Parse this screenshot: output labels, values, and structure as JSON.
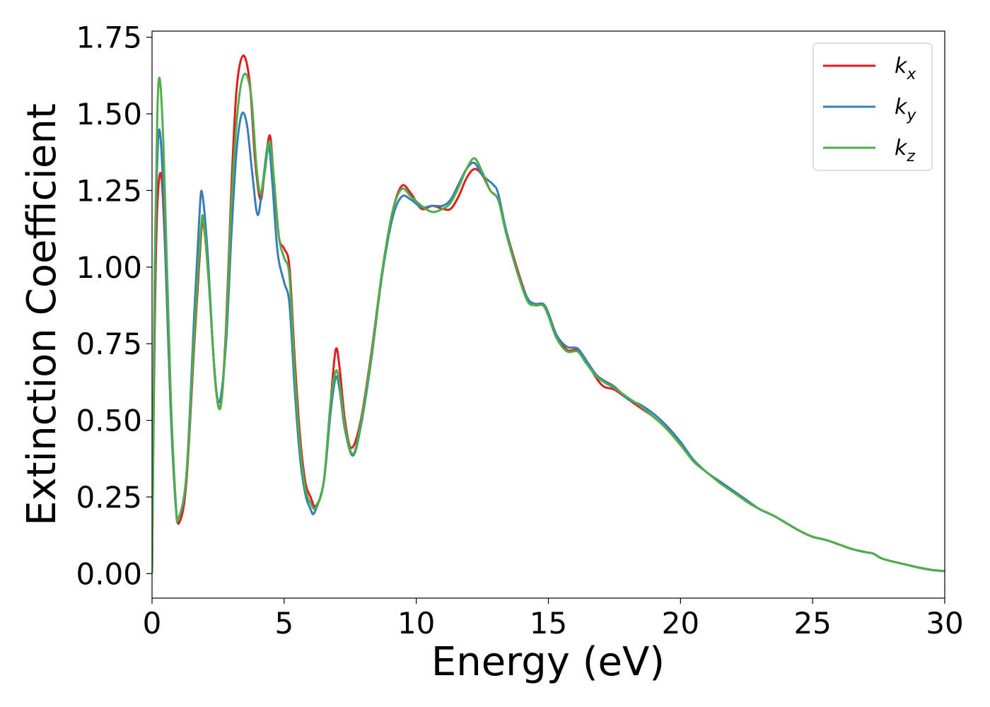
{
  "chart_data": {
    "type": "line",
    "xlabel": "Energy (eV)",
    "ylabel": "Extinction Coefficient",
    "xlim": [
      0,
      30
    ],
    "ylim": [
      -0.08,
      1.77
    ],
    "xticks": [
      0,
      5,
      10,
      15,
      20,
      25,
      30
    ],
    "xtick_labels": [
      "0",
      "5",
      "10",
      "15",
      "20",
      "25",
      "30"
    ],
    "yticks": [
      0.0,
      0.25,
      0.5,
      0.75,
      1.0,
      1.25,
      1.5,
      1.75
    ],
    "ytick_labels": [
      "0.00",
      "0.25",
      "0.50",
      "0.75",
      "1.00",
      "1.25",
      "1.50",
      "1.75"
    ],
    "grid": false,
    "legend": {
      "location": "top-right"
    },
    "series": [
      {
        "name": "k",
        "subscript": "x",
        "color": "#e41a1c",
        "points": [
          [
            0,
            0.0
          ],
          [
            0.1,
            0.8
          ],
          [
            0.2,
            1.2
          ],
          [
            0.35,
            1.3
          ],
          [
            0.5,
            1.05
          ],
          [
            0.7,
            0.55
          ],
          [
            0.9,
            0.22
          ],
          [
            1.05,
            0.17
          ],
          [
            1.3,
            0.3
          ],
          [
            1.6,
            0.75
          ],
          [
            1.85,
            1.1
          ],
          [
            1.95,
            1.14
          ],
          [
            2.15,
            0.95
          ],
          [
            2.4,
            0.62
          ],
          [
            2.6,
            0.55
          ],
          [
            2.8,
            0.8
          ],
          [
            3.0,
            1.25
          ],
          [
            3.2,
            1.58
          ],
          [
            3.45,
            1.69
          ],
          [
            3.7,
            1.6
          ],
          [
            3.9,
            1.35
          ],
          [
            4.1,
            1.22
          ],
          [
            4.25,
            1.3
          ],
          [
            4.45,
            1.43
          ],
          [
            4.6,
            1.3
          ],
          [
            4.8,
            1.1
          ],
          [
            5.0,
            1.06
          ],
          [
            5.2,
            1.0
          ],
          [
            5.4,
            0.7
          ],
          [
            5.6,
            0.45
          ],
          [
            5.8,
            0.3
          ],
          [
            6.0,
            0.25
          ],
          [
            6.2,
            0.22
          ],
          [
            6.5,
            0.3
          ],
          [
            6.75,
            0.55
          ],
          [
            6.95,
            0.73
          ],
          [
            7.1,
            0.67
          ],
          [
            7.3,
            0.5
          ],
          [
            7.55,
            0.41
          ],
          [
            7.9,
            0.5
          ],
          [
            8.3,
            0.72
          ],
          [
            8.7,
            0.98
          ],
          [
            9.1,
            1.18
          ],
          [
            9.45,
            1.265
          ],
          [
            9.8,
            1.24
          ],
          [
            10.2,
            1.19
          ],
          [
            10.6,
            1.2
          ],
          [
            11.0,
            1.19
          ],
          [
            11.3,
            1.19
          ],
          [
            11.6,
            1.23
          ],
          [
            11.9,
            1.29
          ],
          [
            12.2,
            1.32
          ],
          [
            12.5,
            1.3
          ],
          [
            12.8,
            1.25
          ],
          [
            13.1,
            1.22
          ],
          [
            13.4,
            1.12
          ],
          [
            13.8,
            1.0
          ],
          [
            14.2,
            0.9
          ],
          [
            14.5,
            0.88
          ],
          [
            14.8,
            0.88
          ],
          [
            15.0,
            0.85
          ],
          [
            15.3,
            0.78
          ],
          [
            15.7,
            0.73
          ],
          [
            16.1,
            0.73
          ],
          [
            16.4,
            0.7
          ],
          [
            16.8,
            0.64
          ],
          [
            17.1,
            0.61
          ],
          [
            17.5,
            0.6
          ],
          [
            18.0,
            0.57
          ],
          [
            18.5,
            0.54
          ],
          [
            19.0,
            0.51
          ],
          [
            19.5,
            0.47
          ],
          [
            20.0,
            0.42
          ],
          [
            20.5,
            0.37
          ],
          [
            21.0,
            0.33
          ],
          [
            21.5,
            0.3
          ],
          [
            22.0,
            0.27
          ],
          [
            22.5,
            0.235
          ],
          [
            23.0,
            0.21
          ],
          [
            23.5,
            0.19
          ],
          [
            24.0,
            0.165
          ],
          [
            24.5,
            0.14
          ],
          [
            25.0,
            0.12
          ],
          [
            25.5,
            0.11
          ],
          [
            26.0,
            0.095
          ],
          [
            26.5,
            0.08
          ],
          [
            27.0,
            0.07
          ],
          [
            27.3,
            0.065
          ],
          [
            27.6,
            0.05
          ],
          [
            28.0,
            0.04
          ],
          [
            28.5,
            0.03
          ],
          [
            29.0,
            0.02
          ],
          [
            29.5,
            0.012
          ],
          [
            30.0,
            0.008
          ]
        ]
      },
      {
        "name": "k",
        "subscript": "y",
        "color": "#377eb8",
        "points": [
          [
            0,
            0.0
          ],
          [
            0.1,
            0.9
          ],
          [
            0.2,
            1.35
          ],
          [
            0.3,
            1.44
          ],
          [
            0.45,
            1.2
          ],
          [
            0.7,
            0.55
          ],
          [
            0.9,
            0.22
          ],
          [
            1.0,
            0.18
          ],
          [
            1.3,
            0.32
          ],
          [
            1.6,
            0.85
          ],
          [
            1.8,
            1.18
          ],
          [
            1.9,
            1.24
          ],
          [
            2.1,
            1.05
          ],
          [
            2.35,
            0.68
          ],
          [
            2.55,
            0.56
          ],
          [
            2.8,
            0.75
          ],
          [
            3.0,
            1.1
          ],
          [
            3.2,
            1.38
          ],
          [
            3.4,
            1.5
          ],
          [
            3.6,
            1.46
          ],
          [
            3.8,
            1.3
          ],
          [
            4.0,
            1.17
          ],
          [
            4.2,
            1.28
          ],
          [
            4.4,
            1.4
          ],
          [
            4.55,
            1.28
          ],
          [
            4.75,
            1.05
          ],
          [
            5.0,
            0.95
          ],
          [
            5.2,
            0.88
          ],
          [
            5.4,
            0.6
          ],
          [
            5.6,
            0.38
          ],
          [
            5.8,
            0.26
          ],
          [
            6.0,
            0.21
          ],
          [
            6.15,
            0.2
          ],
          [
            6.5,
            0.3
          ],
          [
            6.75,
            0.52
          ],
          [
            6.95,
            0.64
          ],
          [
            7.1,
            0.6
          ],
          [
            7.3,
            0.47
          ],
          [
            7.6,
            0.385
          ],
          [
            7.9,
            0.48
          ],
          [
            8.3,
            0.7
          ],
          [
            8.7,
            0.97
          ],
          [
            9.1,
            1.16
          ],
          [
            9.45,
            1.23
          ],
          [
            9.8,
            1.22
          ],
          [
            10.2,
            1.195
          ],
          [
            10.6,
            1.2
          ],
          [
            11.0,
            1.2
          ],
          [
            11.3,
            1.22
          ],
          [
            11.6,
            1.27
          ],
          [
            11.9,
            1.32
          ],
          [
            12.2,
            1.34
          ],
          [
            12.5,
            1.3
          ],
          [
            12.9,
            1.27
          ],
          [
            13.1,
            1.24
          ],
          [
            13.4,
            1.12
          ],
          [
            13.8,
            0.99
          ],
          [
            14.2,
            0.9
          ],
          [
            14.5,
            0.88
          ],
          [
            14.8,
            0.88
          ],
          [
            15.0,
            0.85
          ],
          [
            15.3,
            0.78
          ],
          [
            15.7,
            0.74
          ],
          [
            16.1,
            0.735
          ],
          [
            16.4,
            0.7
          ],
          [
            16.8,
            0.65
          ],
          [
            17.1,
            0.63
          ],
          [
            17.5,
            0.61
          ],
          [
            18.0,
            0.57
          ],
          [
            18.5,
            0.55
          ],
          [
            19.0,
            0.52
          ],
          [
            19.5,
            0.48
          ],
          [
            20.0,
            0.43
          ],
          [
            20.5,
            0.37
          ],
          [
            21.0,
            0.33
          ],
          [
            21.5,
            0.3
          ],
          [
            22.0,
            0.27
          ],
          [
            22.5,
            0.24
          ],
          [
            23.0,
            0.21
          ],
          [
            23.5,
            0.19
          ],
          [
            24.0,
            0.165
          ],
          [
            24.5,
            0.14
          ],
          [
            25.0,
            0.12
          ],
          [
            25.5,
            0.11
          ],
          [
            26.0,
            0.095
          ],
          [
            26.5,
            0.08
          ],
          [
            27.0,
            0.07
          ],
          [
            27.3,
            0.065
          ],
          [
            27.6,
            0.05
          ],
          [
            28.0,
            0.04
          ],
          [
            28.5,
            0.03
          ],
          [
            29.0,
            0.02
          ],
          [
            29.5,
            0.012
          ],
          [
            30.0,
            0.008
          ]
        ]
      },
      {
        "name": "k",
        "subscript": "z",
        "color": "#4daf4a",
        "points": [
          [
            0,
            0.0
          ],
          [
            0.1,
            1.0
          ],
          [
            0.2,
            1.5
          ],
          [
            0.3,
            1.61
          ],
          [
            0.45,
            1.35
          ],
          [
            0.7,
            0.6
          ],
          [
            0.9,
            0.23
          ],
          [
            1.0,
            0.18
          ],
          [
            1.3,
            0.32
          ],
          [
            1.6,
            0.78
          ],
          [
            1.85,
            1.12
          ],
          [
            1.95,
            1.15
          ],
          [
            2.15,
            0.95
          ],
          [
            2.4,
            0.62
          ],
          [
            2.6,
            0.545
          ],
          [
            2.8,
            0.78
          ],
          [
            3.0,
            1.2
          ],
          [
            3.25,
            1.52
          ],
          [
            3.5,
            1.63
          ],
          [
            3.75,
            1.56
          ],
          [
            3.95,
            1.33
          ],
          [
            4.1,
            1.24
          ],
          [
            4.25,
            1.3
          ],
          [
            4.45,
            1.41
          ],
          [
            4.6,
            1.3
          ],
          [
            4.8,
            1.1
          ],
          [
            5.0,
            1.03
          ],
          [
            5.2,
            0.97
          ],
          [
            5.4,
            0.66
          ],
          [
            5.6,
            0.42
          ],
          [
            5.8,
            0.28
          ],
          [
            6.0,
            0.23
          ],
          [
            6.2,
            0.215
          ],
          [
            6.5,
            0.3
          ],
          [
            6.75,
            0.55
          ],
          [
            6.95,
            0.66
          ],
          [
            7.1,
            0.62
          ],
          [
            7.3,
            0.48
          ],
          [
            7.6,
            0.39
          ],
          [
            7.9,
            0.49
          ],
          [
            8.3,
            0.71
          ],
          [
            8.7,
            0.98
          ],
          [
            9.1,
            1.18
          ],
          [
            9.45,
            1.255
          ],
          [
            9.8,
            1.23
          ],
          [
            10.2,
            1.2
          ],
          [
            10.6,
            1.18
          ],
          [
            11.0,
            1.19
          ],
          [
            11.3,
            1.21
          ],
          [
            11.6,
            1.26
          ],
          [
            11.9,
            1.32
          ],
          [
            12.2,
            1.355
          ],
          [
            12.5,
            1.31
          ],
          [
            12.8,
            1.25
          ],
          [
            13.1,
            1.22
          ],
          [
            13.4,
            1.11
          ],
          [
            13.8,
            0.99
          ],
          [
            14.2,
            0.89
          ],
          [
            14.5,
            0.875
          ],
          [
            14.8,
            0.875
          ],
          [
            15.0,
            0.84
          ],
          [
            15.3,
            0.77
          ],
          [
            15.7,
            0.725
          ],
          [
            16.1,
            0.725
          ],
          [
            16.4,
            0.69
          ],
          [
            16.8,
            0.645
          ],
          [
            17.1,
            0.625
          ],
          [
            17.5,
            0.605
          ],
          [
            18.0,
            0.575
          ],
          [
            18.5,
            0.545
          ],
          [
            19.0,
            0.51
          ],
          [
            19.5,
            0.47
          ],
          [
            20.0,
            0.42
          ],
          [
            20.5,
            0.365
          ],
          [
            21.0,
            0.33
          ],
          [
            21.5,
            0.295
          ],
          [
            22.0,
            0.265
          ],
          [
            22.5,
            0.235
          ],
          [
            23.0,
            0.21
          ],
          [
            23.5,
            0.19
          ],
          [
            24.0,
            0.165
          ],
          [
            24.5,
            0.14
          ],
          [
            25.0,
            0.12
          ],
          [
            25.5,
            0.11
          ],
          [
            26.0,
            0.095
          ],
          [
            26.5,
            0.08
          ],
          [
            27.0,
            0.07
          ],
          [
            27.3,
            0.065
          ],
          [
            27.6,
            0.05
          ],
          [
            28.0,
            0.04
          ],
          [
            28.5,
            0.03
          ],
          [
            29.0,
            0.02
          ],
          [
            29.5,
            0.012
          ],
          [
            30.0,
            0.008
          ]
        ]
      }
    ]
  }
}
